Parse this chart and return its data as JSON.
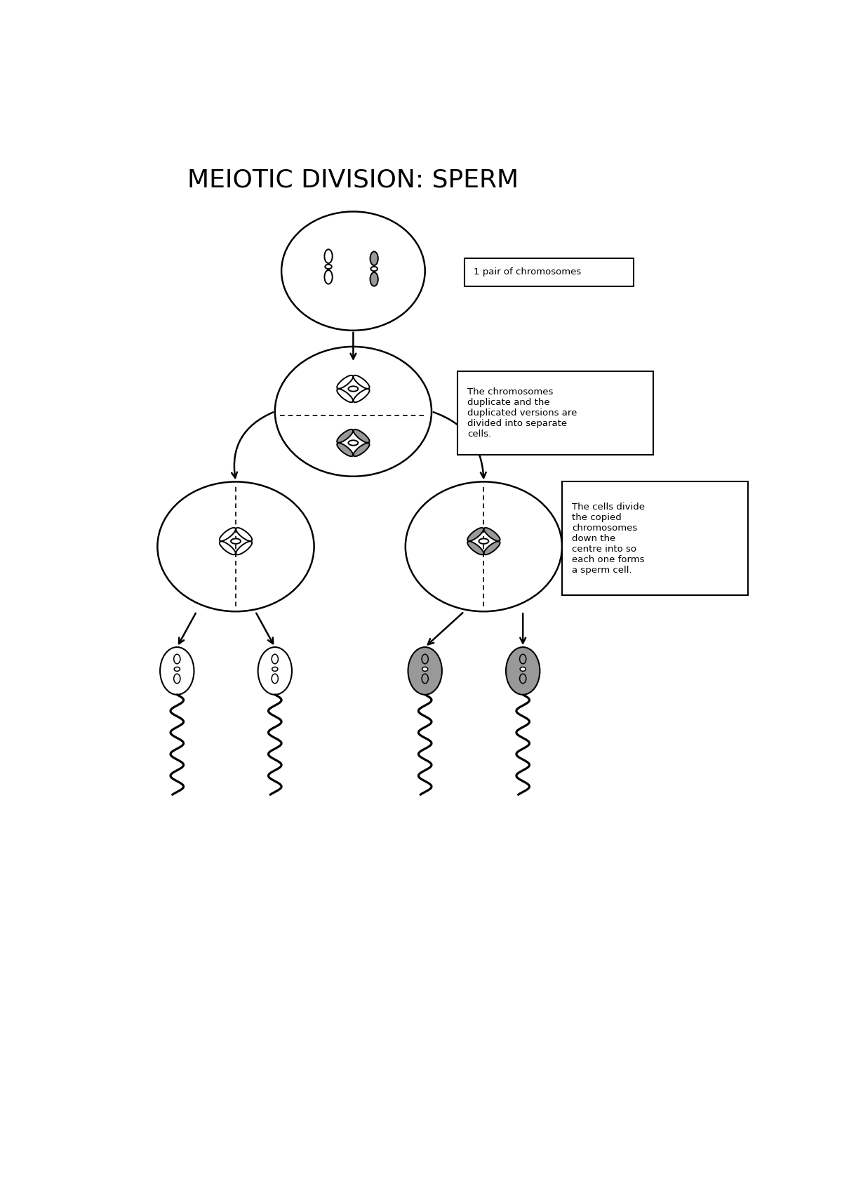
{
  "title": "MEIOTIC DIVISION: SPERM",
  "title_fontsize": 26,
  "bg_color": "#ffffff",
  "line_color": "#000000",
  "gray_color": "#999999",
  "box1_text": "1 pair of chromosomes",
  "box2_text": "The chromosomes\nduplicate and the\nduplicated versions are\ndivided into separate\ncells.",
  "box3_text": "The cells divide\nthe copied\nchromosomes\ndown the\ncentre into so\neach one forms\na sperm cell."
}
